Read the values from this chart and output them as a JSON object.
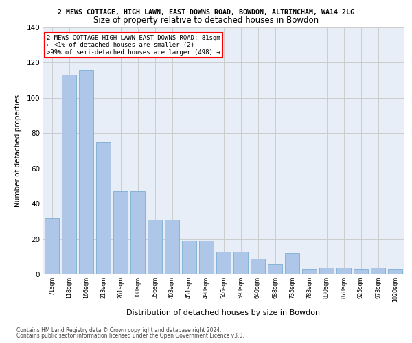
{
  "title_main": "2 MEWS COTTAGE, HIGH LAWN, EAST DOWNS ROAD, BOWDON, ALTRINCHAM, WA14 2LG",
  "title_sub": "Size of property relative to detached houses in Bowdon",
  "xlabel": "Distribution of detached houses by size in Bowdon",
  "ylabel": "Number of detached properties",
  "categories": [
    "71sqm",
    "118sqm",
    "166sqm",
    "213sqm",
    "261sqm",
    "308sqm",
    "356sqm",
    "403sqm",
    "451sqm",
    "498sqm",
    "546sqm",
    "593sqm",
    "640sqm",
    "688sqm",
    "735sqm",
    "783sqm",
    "830sqm",
    "878sqm",
    "925sqm",
    "973sqm",
    "1020sqm"
  ],
  "bar_values": [
    32,
    113,
    116,
    75,
    47,
    47,
    31,
    31,
    19,
    19,
    13,
    13,
    9,
    6,
    12,
    3,
    4,
    4,
    3,
    4,
    3
  ],
  "bar_color": "#aec6e8",
  "bar_edge_color": "#7aafd4",
  "annotation_text_line1": "2 MEWS COTTAGE HIGH LAWN EAST DOWNS ROAD: 81sqm",
  "annotation_text_line2": "← <1% of detached houses are smaller (2)",
  "annotation_text_line3": ">99% of semi-detached houses are larger (498) →",
  "ylim": [
    0,
    140
  ],
  "yticks": [
    0,
    20,
    40,
    60,
    80,
    100,
    120,
    140
  ],
  "grid_color": "#cccccc",
  "bg_color": "#e8eef8",
  "footer_line1": "Contains HM Land Registry data © Crown copyright and database right 2024.",
  "footer_line2": "Contains public sector information licensed under the Open Government Licence v3.0."
}
